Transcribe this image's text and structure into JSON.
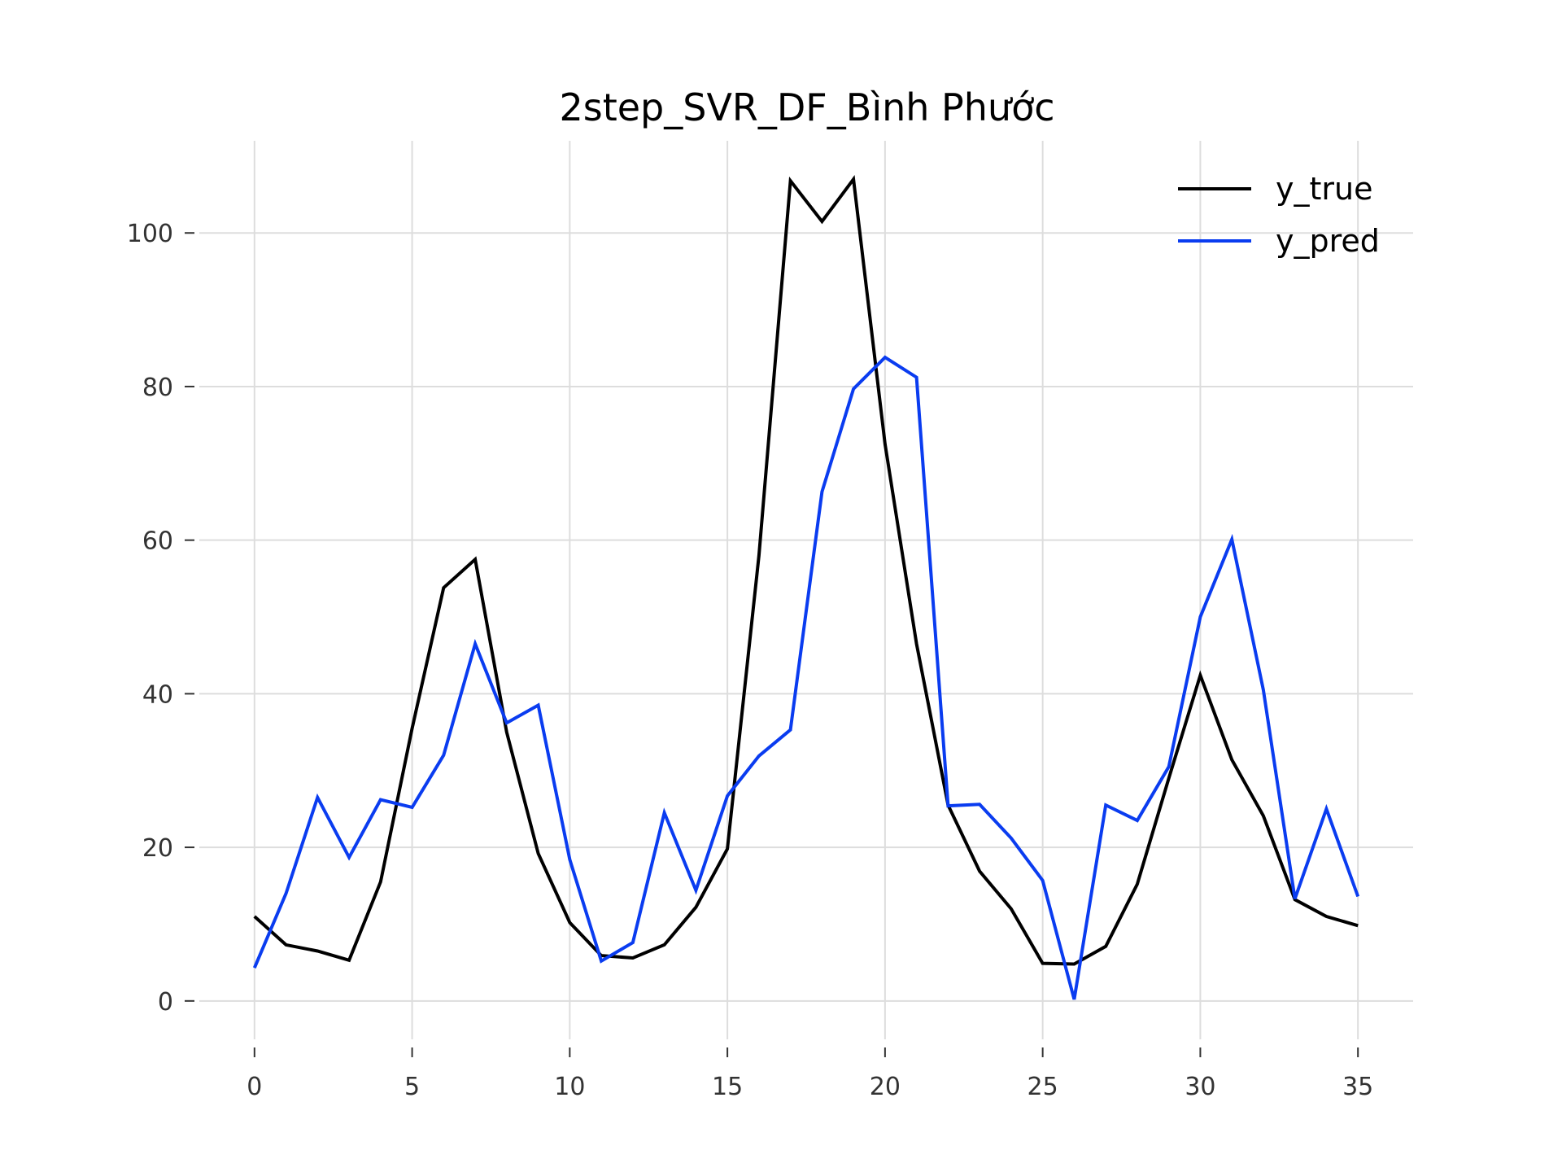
{
  "chart_data": {
    "type": "line",
    "title": "2step_SVR_DF_Bình Phước",
    "xlabel": "",
    "ylabel": "",
    "xlim": [
      -1.75,
      36.75
    ],
    "ylim": [
      -5,
      112
    ],
    "grid": true,
    "legend_position": "top-right",
    "x_ticks": [
      0,
      5,
      10,
      15,
      20,
      25,
      30,
      35
    ],
    "y_ticks": [
      0,
      20,
      40,
      60,
      80,
      100
    ],
    "x": [
      0,
      1,
      2,
      3,
      4,
      5,
      6,
      7,
      8,
      9,
      10,
      11,
      12,
      13,
      14,
      15,
      16,
      17,
      18,
      19,
      20,
      21,
      22,
      23,
      24,
      25,
      26,
      27,
      28,
      29,
      30,
      31,
      32,
      33,
      34,
      35
    ],
    "series": [
      {
        "name": "y_true",
        "color": "#000000",
        "values": [
          11.0,
          7.3,
          6.5,
          5.3,
          15.5,
          35.5,
          53.8,
          57.5,
          35.0,
          19.2,
          10.2,
          5.9,
          5.6,
          7.3,
          12.2,
          19.8,
          58.0,
          106.8,
          101.5,
          107.0,
          72.5,
          46.5,
          25.5,
          16.9,
          12.0,
          4.9,
          4.8,
          7.1,
          15.2,
          29.0,
          42.4,
          31.4,
          24.1,
          13.2,
          11.0,
          9.8
        ]
      },
      {
        "name": "y_pred",
        "color": "#0a3cf0",
        "values": [
          4.3,
          14.0,
          26.5,
          18.7,
          26.2,
          25.2,
          32.0,
          46.5,
          36.2,
          38.5,
          18.4,
          5.2,
          7.6,
          24.5,
          14.4,
          26.7,
          31.9,
          35.3,
          66.3,
          79.7,
          83.8,
          81.2,
          25.4,
          25.6,
          21.2,
          15.7,
          0.2,
          25.5,
          23.5,
          30.5,
          50.0,
          60.1,
          40.5,
          13.3,
          25.0,
          13.6
        ]
      }
    ]
  }
}
